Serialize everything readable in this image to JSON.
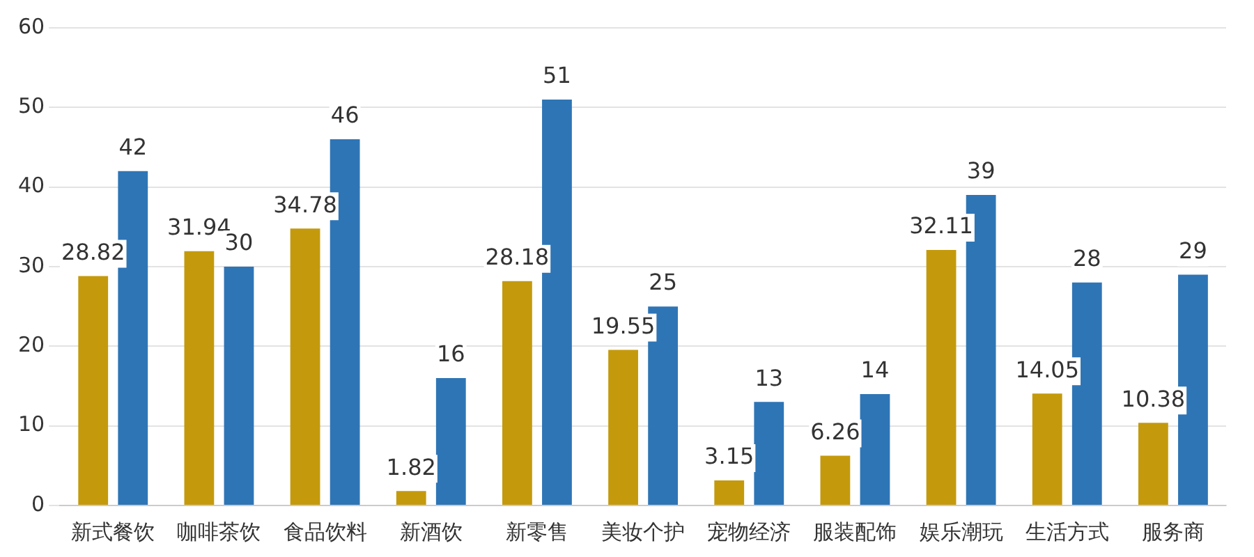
{
  "chart_data": {
    "type": "bar",
    "categories": [
      "新式餐饮",
      "咖啡茶饮",
      "食品饮料",
      "新酒饮",
      "新零售",
      "美妆个护",
      "宠物经济",
      "服装配饰",
      "娱乐潮玩",
      "生活方式",
      "服务商"
    ],
    "series": [
      {
        "color": "#c49a0c",
        "values": [
          28.82,
          31.94,
          34.78,
          1.82,
          28.18,
          19.55,
          3.15,
          6.26,
          32.11,
          14.05,
          10.38
        ]
      },
      {
        "color": "#2e75b6",
        "values": [
          42,
          30,
          46,
          16,
          51,
          25,
          13,
          14,
          39,
          28,
          29
        ]
      }
    ],
    "ylim": [
      0,
      60
    ],
    "yticks": [
      0,
      10,
      20,
      30,
      40,
      50,
      60
    ],
    "grid": "y",
    "data_labels": true,
    "legend": false
  }
}
